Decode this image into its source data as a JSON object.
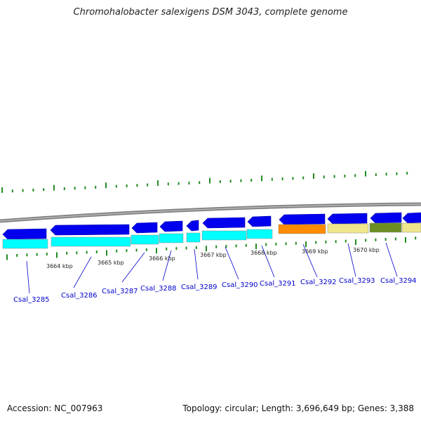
{
  "title": "Chromohalobacter salexigens DSM 3043, complete genome",
  "footer": {
    "accession": "Accession: NC_007963",
    "topology": "Topology: circular; Length: 3,696,649 bp; Genes: 3,388"
  },
  "colors": {
    "backbone": "#808080",
    "tick": "#228b22",
    "cds_forward": "#0000ee",
    "cds_reverse": "#00ffff",
    "highlight_orange": "#ff8c00",
    "highlight_khaki": "#f0e68c",
    "highlight_olive": "#6b8e23",
    "label": "#0000cc"
  },
  "scale_labels": [
    "3664 kbp",
    "3665 kbp",
    "3666 kbp",
    "3667 kbp",
    "3668 kbp",
    "3669 kbp",
    "3670 kbp"
  ],
  "genes": [
    {
      "label": "Csal_3285"
    },
    {
      "label": "Csal_3286"
    },
    {
      "label": "Csal_3287"
    },
    {
      "label": "Csal_3288"
    },
    {
      "label": "Csal_3289"
    },
    {
      "label": "Csal_3290"
    },
    {
      "label": "Csal_3291"
    },
    {
      "label": "Csal_3292"
    },
    {
      "label": "Csal_3293"
    },
    {
      "label": "Csal_3294"
    }
  ]
}
